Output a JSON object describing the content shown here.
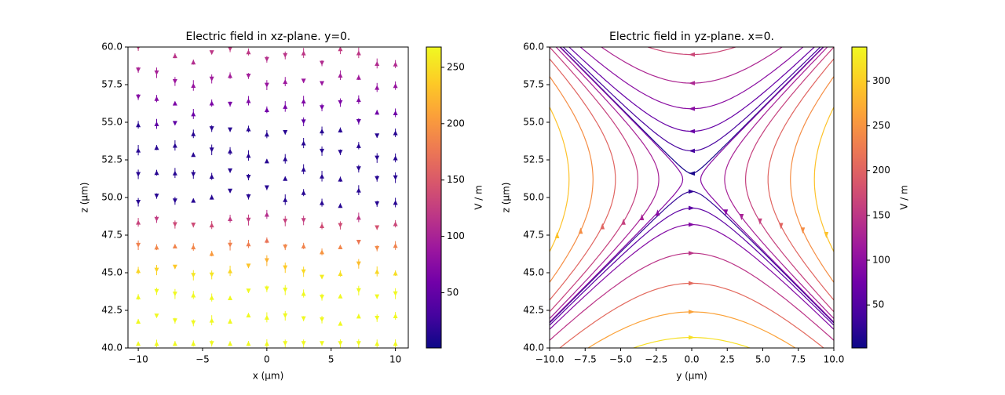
{
  "chart_data": [
    {
      "type": "quiver",
      "title": "Electric field in xz-plane. y=0.",
      "x_label": "x (µm)",
      "y_label": "z (µm)",
      "xlim": [
        -10.8,
        11.0
      ],
      "xticks": [
        {
          "value": -10,
          "label": "−10"
        },
        {
          "value": -5,
          "label": "−5"
        },
        0,
        5,
        10
      ],
      "ylim": [
        40,
        60
      ],
      "yticks": [
        {
          "value": 40,
          "label": "40.0"
        },
        42.5,
        {
          "value": 45,
          "label": "45.0"
        },
        47.5,
        {
          "value": 50,
          "label": "50.0"
        },
        52.5,
        {
          "value": 55,
          "label": "55.0"
        },
        57.5,
        {
          "value": 60,
          "label": "60.0"
        }
      ],
      "colorbar": {
        "label": "V / m",
        "lim": [
          1,
          268
        ],
        "ticks": [
          50,
          100,
          150,
          200,
          250
        ]
      }
    },
    {
      "type": "streamplot",
      "title": "Electric field in yz-plane. x=0.",
      "x_label": "y (µm)",
      "y_label": "z (µm)",
      "xlim": [
        -10,
        10
      ],
      "xticks": [
        {
          "value": -10,
          "label": "−10.0"
        },
        {
          "value": -7.5,
          "label": "−7.5"
        },
        {
          "value": -5,
          "label": "−5.0"
        },
        {
          "value": -2.5,
          "label": "−2.5"
        },
        {
          "value": 0,
          "label": "0.0"
        },
        2.5,
        {
          "value": 5,
          "label": "5.0"
        },
        7.5,
        {
          "value": 10,
          "label": "10.0"
        }
      ],
      "ylim": [
        40,
        60
      ],
      "yticks": [
        {
          "value": 40,
          "label": "40.0"
        },
        42.5,
        {
          "value": 45,
          "label": "45.0"
        },
        47.5,
        {
          "value": 50,
          "label": "50.0"
        },
        52.5,
        {
          "value": 55,
          "label": "55.0"
        },
        57.5,
        {
          "value": 60,
          "label": "60.0"
        }
      ],
      "colorbar": {
        "label": "V / m",
        "lim": [
          2,
          338
        ],
        "ticks": [
          50,
          100,
          150,
          200,
          250,
          300
        ]
      }
    }
  ]
}
